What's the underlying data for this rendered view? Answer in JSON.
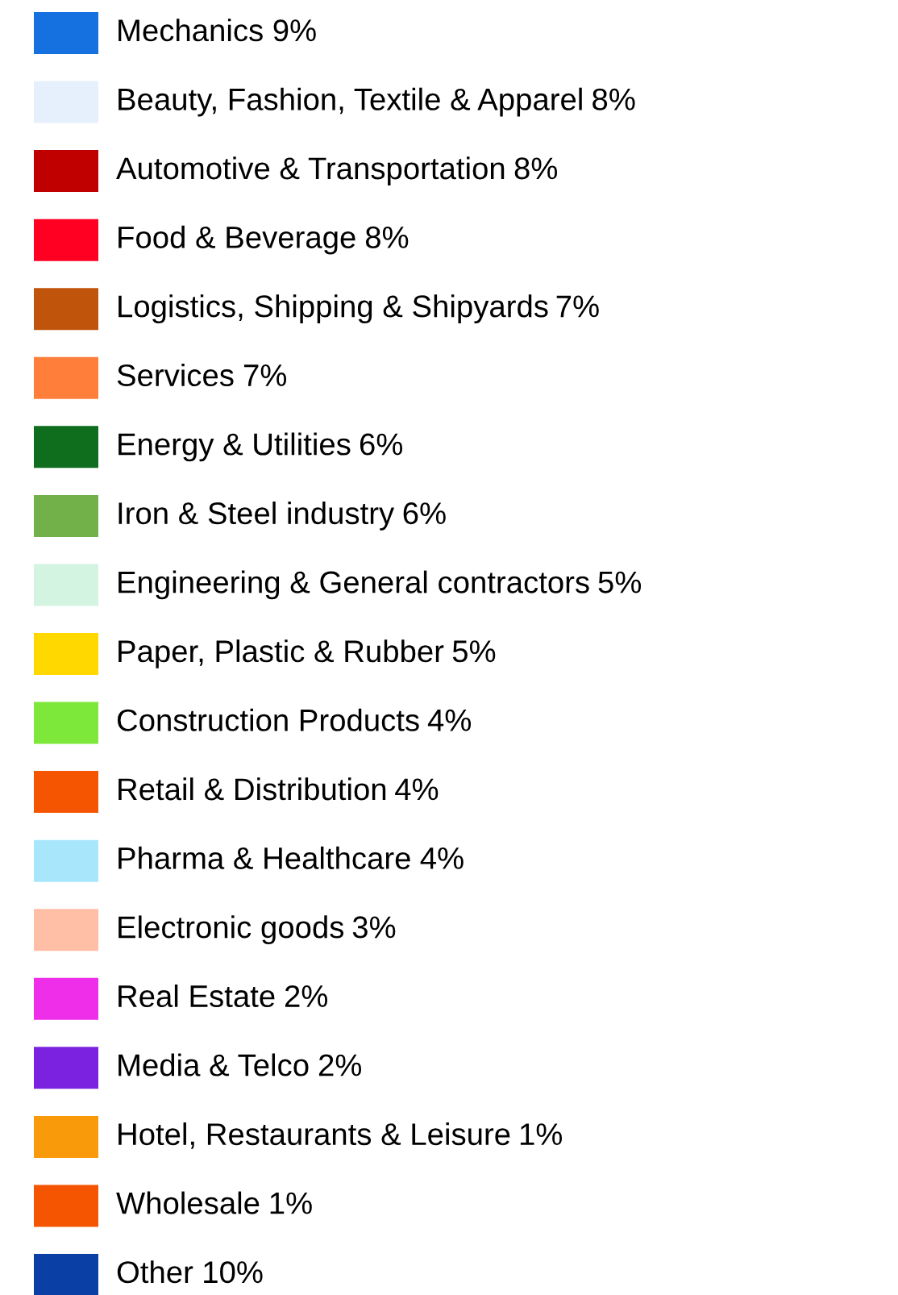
{
  "chart_data": {
    "type": "other",
    "categories": [
      "Mechanics",
      "Beauty, Fashion, Textile & Apparel",
      "Automotive & Transportation",
      "Food & Beverage",
      "Logistics, Shipping & Shipyards",
      "Services",
      "Energy & Utilities",
      "Iron & Steel industry",
      "Engineering & General contractors",
      "Paper, Plastic & Rubber",
      "Construction Products",
      "Retail & Distribution",
      "Pharma & Healthcare",
      "Electronic goods",
      "Real Estate",
      "Media & Telco",
      "Hotel, Restaurants & Leisure",
      "Wholesale",
      "Other"
    ],
    "values": [
      9,
      8,
      8,
      8,
      7,
      7,
      6,
      6,
      5,
      5,
      4,
      4,
      4,
      3,
      2,
      2,
      1,
      1,
      10
    ],
    "value_labels": [
      "9%",
      "8%",
      "8%",
      "8%",
      "7%",
      "7%",
      "6%",
      "6%",
      "5%",
      "5%",
      "4%",
      "4%",
      "4%",
      "3%",
      "2%",
      "2%",
      "1%",
      "1%",
      "10%"
    ],
    "colors": [
      "#1570e0",
      "#e6f0fc",
      "#c00000",
      "#ff0022",
      "#c0540a",
      "#ff7f3a",
      "#0e6e1e",
      "#72b04a",
      "#d4f4e2",
      "#ffd800",
      "#7ee83a",
      "#f55500",
      "#a8e6fc",
      "#ffbfa6",
      "#ee2ee8",
      "#7a22e0",
      "#f99a0a",
      "#f55500",
      "#0a3fa6"
    ]
  }
}
